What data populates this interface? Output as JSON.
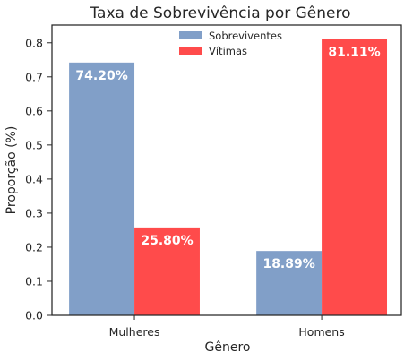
{
  "chart_data": {
    "type": "bar",
    "title": "Taxa de Sobrevivência por Gênero",
    "xlabel": "Gênero",
    "ylabel": "Proporção (%)",
    "categories": [
      "Mulheres",
      "Homens"
    ],
    "series": [
      {
        "name": "Sobreviventes",
        "values": [
          0.742,
          0.1889
        ],
        "labels": [
          "74.20%",
          "18.89%"
        ],
        "color": "#819fc8"
      },
      {
        "name": "Vítimas",
        "values": [
          0.258,
          0.8111
        ],
        "labels": [
          "25.80%",
          "81.11%"
        ],
        "color": "#ff4b4b"
      }
    ],
    "yticks": [
      0.0,
      0.1,
      0.2,
      0.3,
      0.4,
      0.5,
      0.6,
      0.7,
      0.8
    ],
    "ytick_labels": [
      "0.0",
      "0.1",
      "0.2",
      "0.3",
      "0.4",
      "0.5",
      "0.6",
      "0.7",
      "0.8"
    ],
    "ylim": [
      0,
      0.852
    ],
    "grid": false,
    "legend_position": "top-center"
  }
}
